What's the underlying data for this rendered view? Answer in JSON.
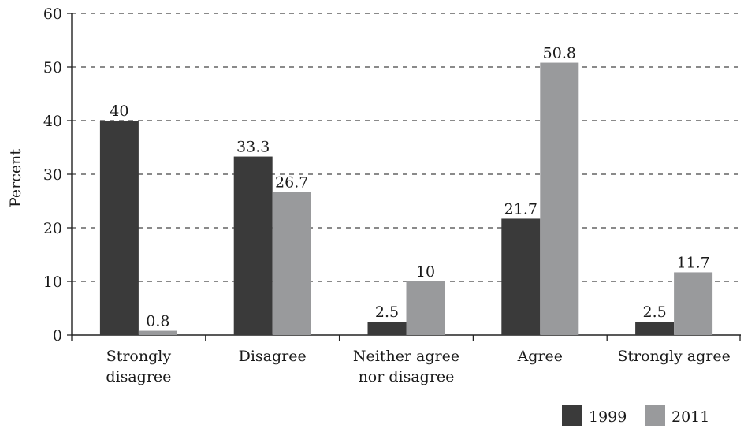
{
  "chart_data": {
    "type": "bar",
    "title": "",
    "xlabel": "",
    "ylabel": "Percent",
    "ylim": [
      0,
      60
    ],
    "yticks": [
      0,
      10,
      20,
      30,
      40,
      50,
      60
    ],
    "grid": "horizontal dashed",
    "legend_position": "bottom-right",
    "categories": [
      [
        "Strongly",
        "disagree"
      ],
      [
        "Disagree"
      ],
      [
        "Neither agree",
        "nor disagree"
      ],
      [
        "Agree"
      ],
      [
        "Strongly agree"
      ]
    ],
    "series": [
      {
        "name": "1999",
        "color": "#3a3a3a",
        "values": [
          40,
          33.3,
          2.5,
          21.7,
          2.5
        ],
        "labels": [
          "40",
          "33.3",
          "2.5",
          "21.7",
          "2.5"
        ]
      },
      {
        "name": "2011",
        "color": "#999a9c",
        "values": [
          0.8,
          26.7,
          10,
          50.8,
          11.7
        ],
        "labels": [
          "0.8",
          "26.7",
          "10",
          "50.8",
          "11.7"
        ]
      }
    ]
  }
}
